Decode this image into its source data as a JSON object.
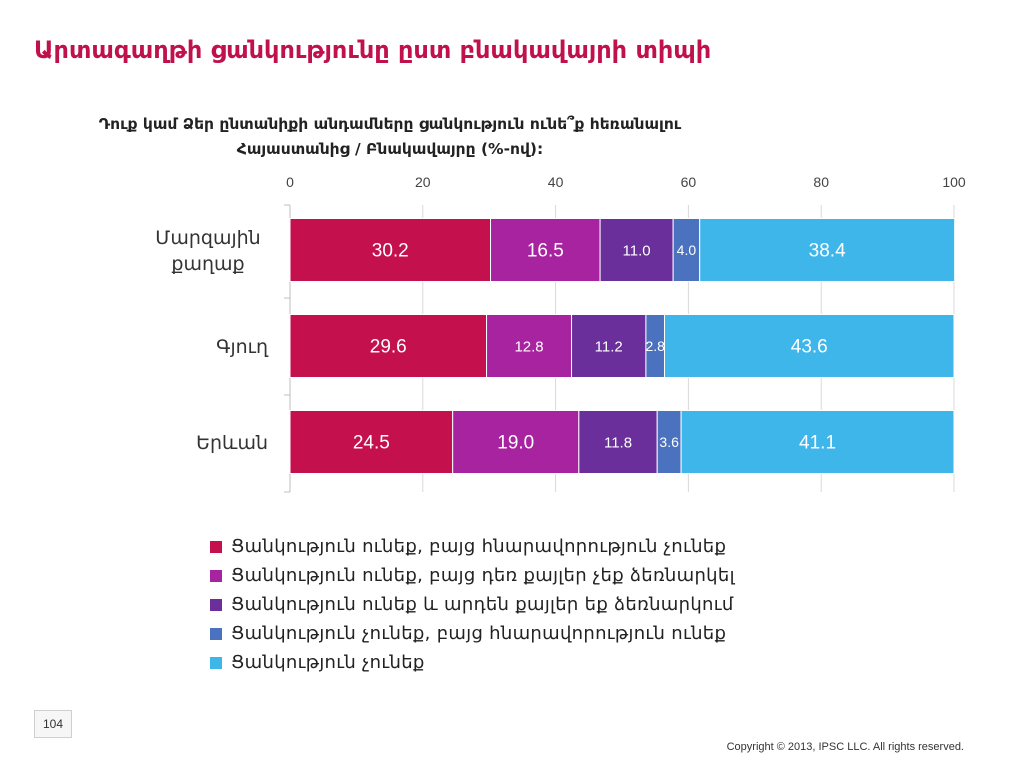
{
  "page": {
    "title": "Արտագաղթի ցանկությունը ըստ բնակավայրի տիպի",
    "page_number": "104",
    "copyright": "Copyright © 2013, IPSC LLC. All rights reserved."
  },
  "chart_data": {
    "type": "bar",
    "orientation": "horizontal",
    "stacked": true,
    "title_lines": [
      "Դուք կամ Ձեր ընտանիքի անդամները ցանկություն ունե՞ք հեռանալու",
      "Հայաստանից / Բնակավայրը (%-ով):"
    ],
    "xlim": [
      0,
      100
    ],
    "xticks": [
      "0",
      "20",
      "40",
      "60",
      "80",
      "100"
    ],
    "grid": true,
    "legend_position": "bottom",
    "categories": [
      {
        "label_lines": [
          "Մարզային",
          "քաղաք"
        ]
      },
      {
        "label_lines": [
          "Գյուղ"
        ]
      },
      {
        "label_lines": [
          "Երևան"
        ]
      }
    ],
    "series": [
      {
        "name": "Ցանկություն ունեք, բայց հնարավորություն չունեք",
        "color": "#c4114d",
        "values": [
          30.2,
          29.6,
          24.5
        ]
      },
      {
        "name": "Ցանկություն ունեք, բայց դեռ քայլեր չեք ձեռնարկել",
        "color": "#a8239f",
        "values": [
          16.5,
          12.8,
          19.0
        ]
      },
      {
        "name": "Ցանկություն ունեք և արդեն քայլեր եք ձեռնարկում",
        "color": "#6a2f9a",
        "values": [
          11.0,
          11.2,
          11.8
        ]
      },
      {
        "name": "Ցանկություն չունեք, բայց հնարավորություն ունեք",
        "color": "#4a72be",
        "values": [
          4.0,
          2.8,
          3.6
        ]
      },
      {
        "name": "Ցանկություն չունեք",
        "color": "#3fb6ea",
        "values": [
          38.4,
          43.6,
          41.1
        ]
      }
    ],
    "value_labels": [
      [
        "30.2",
        "16.5",
        "11.0",
        "4.0",
        "38.4"
      ],
      [
        "29.6",
        "12.8",
        "11.2",
        "2.8",
        "43.6"
      ],
      [
        "24.5",
        "19.0",
        "11.8",
        "3.6",
        "41.1"
      ]
    ]
  }
}
